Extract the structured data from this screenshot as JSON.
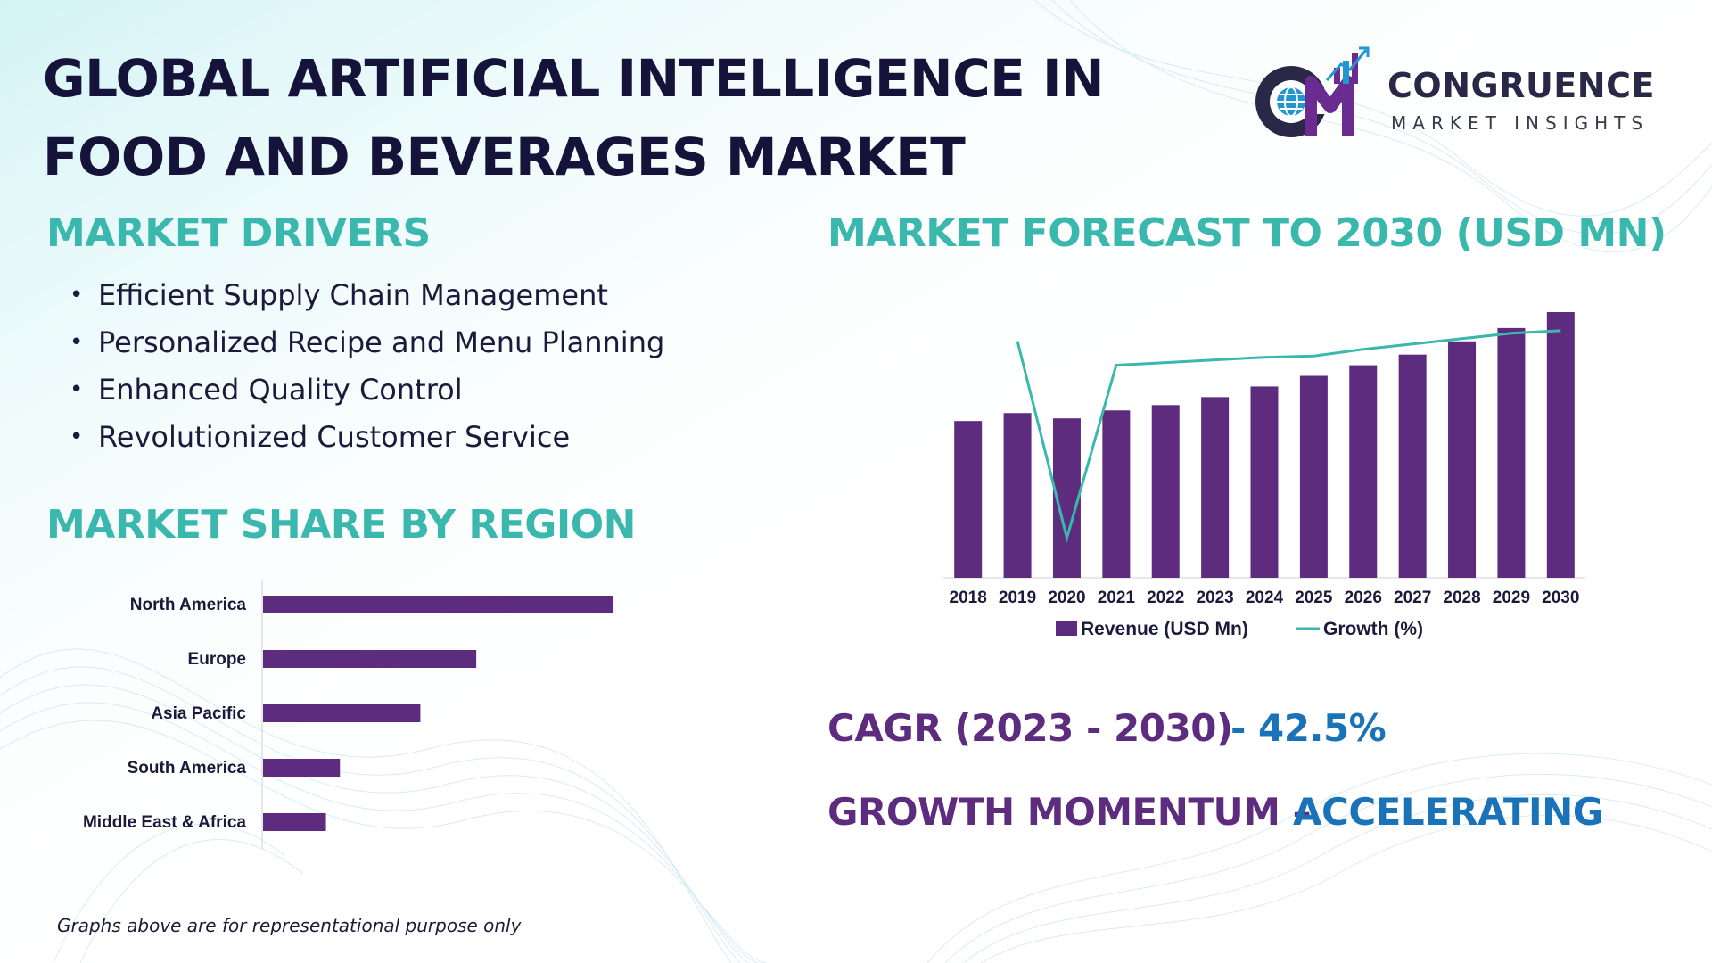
{
  "header": {
    "title_line1": "GLOBAL ARTIFICIAL INTELLIGENCE IN",
    "title_line2": "FOOD AND BEVERAGES MARKET"
  },
  "logo": {
    "name": "CONGRUENCE",
    "subtitle": "MARKET INSIGHTS",
    "icon": "cm-globe-chart-logo",
    "colors": {
      "dark": "#2a2747",
      "purple": "#6a2c91",
      "blue": "#2196d3"
    }
  },
  "drivers": {
    "heading": "MARKET DRIVERS",
    "items": [
      "Efficient Supply Chain Management",
      "Personalized Recipe and Menu Planning",
      "Enhanced Quality Control",
      "Revolutionized Customer Service"
    ]
  },
  "region": {
    "heading": "MARKET SHARE BY REGION"
  },
  "forecast": {
    "heading": "MARKET FORECAST TO 2030 (USD MN)"
  },
  "stats": {
    "cagr_label": "CAGR (2023 - 2030)",
    "cagr_value": "- 42.5%",
    "momentum_label": "GROWTH MOMENTUM –",
    "momentum_value": "ACCELERATING"
  },
  "footnote": "Graphs above are for representational purpose only",
  "colors": {
    "title": "#15133a",
    "heading_teal": "#3ab8ae",
    "bar_purple": "#5e2c7e",
    "line_teal": "#3ab8ae",
    "stat_purple": "#5e2c7e",
    "stat_blue": "#1a73b8"
  },
  "chart_data": [
    {
      "type": "bar",
      "orientation": "horizontal",
      "categories": [
        "North America",
        "Europe",
        "Asia Pacific",
        "South America",
        "Middle East & Africa"
      ],
      "values": [
        100,
        61,
        45,
        22,
        18
      ],
      "xlim": [
        0,
        100
      ],
      "title": "",
      "xlabel": "",
      "ylabel": ""
    },
    {
      "type": "bar",
      "categories": [
        "2018",
        "2019",
        "2020",
        "2021",
        "2022",
        "2023",
        "2024",
        "2025",
        "2026",
        "2027",
        "2028",
        "2029",
        "2030"
      ],
      "series": [
        {
          "name": "Revenue (USD Mn)",
          "type": "bar",
          "values": [
            59,
            62,
            60,
            63,
            65,
            68,
            72,
            76,
            80,
            84,
            89,
            94,
            100
          ]
        },
        {
          "name": "Growth (%)",
          "type": "line",
          "values": [
            null,
            89,
            15,
            80,
            81,
            82,
            83,
            83.5,
            86,
            88,
            90,
            92,
            93
          ]
        }
      ],
      "ylim": [
        0,
        100
      ],
      "legend": "bottom",
      "title": "",
      "xlabel": "",
      "ylabel": ""
    }
  ]
}
